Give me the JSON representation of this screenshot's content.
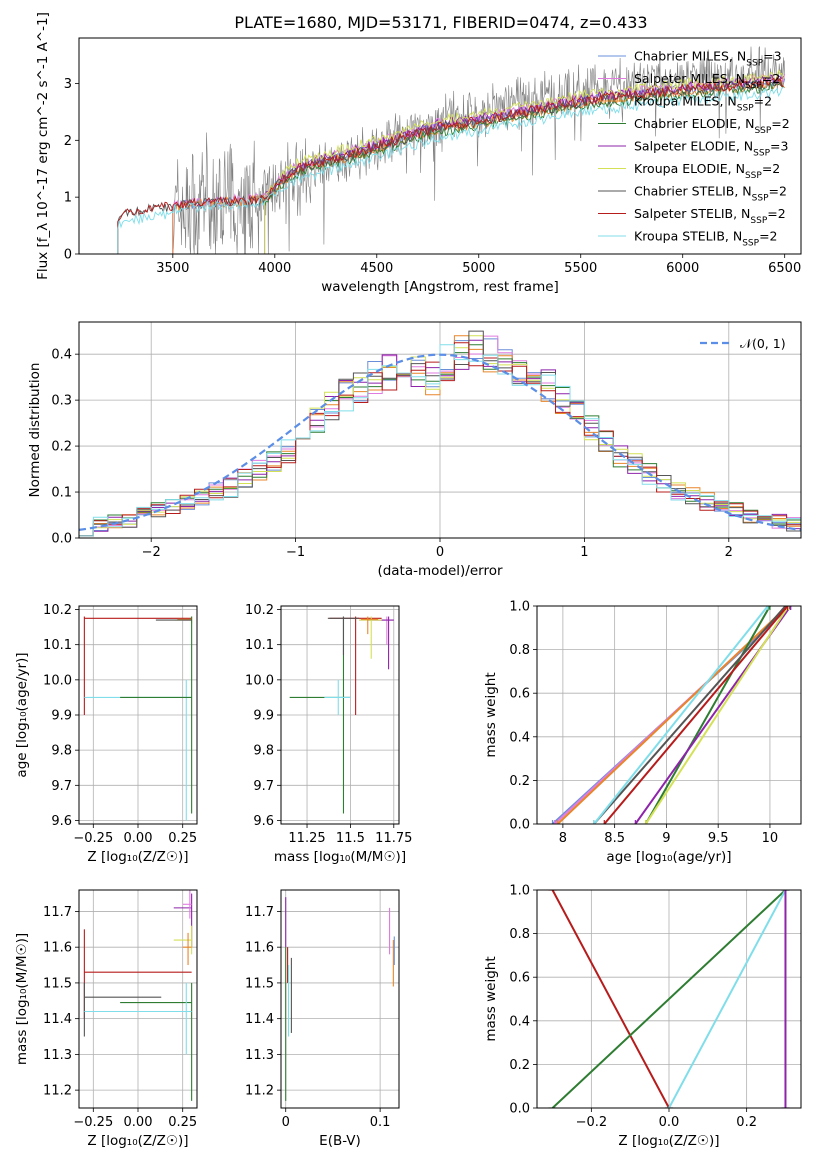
{
  "figure": {
    "title": "PLATE=1680, MJD=53171, FIBERID=0474, z=0.433"
  },
  "colors": {
    "Chabrier MILES": "#6a8fd8",
    "Salpeter MILES": "#e07be0",
    "Kroupa MILES": "#e8862a",
    "Chabrier ELODIE": "#2e7d32",
    "Salpeter ELODIE": "#8e24aa",
    "Kroupa ELODIE": "#d4e157",
    "Chabrier STELIB": "#555555",
    "Salpeter STELIB": "#b71c1c",
    "Kroupa STELIB": "#80deea",
    "data": "#808080",
    "normal": "#5b8ee6"
  },
  "chart_data": [
    {
      "id": "spectrum",
      "type": "line",
      "xlabel": "wavelength [Angstrom, rest frame]",
      "ylabel": "Flux [f_λ 10^-17 erg cm^-2 s^-1 A^-1]",
      "xlim": [
        3040,
        6580
      ],
      "ylim": [
        0,
        3.8
      ],
      "xticks": [
        3500,
        4000,
        4500,
        5000,
        5500,
        6000,
        6500
      ],
      "yticks": [
        0,
        1,
        2,
        3
      ],
      "grid": false,
      "legend_position": "upper right",
      "data_trend_knots": {
        "x": [
          3500,
          3700,
          3950,
          4100,
          4500,
          4800,
          5000,
          5500,
          6000,
          6500
        ],
        "y": [
          0.75,
          0.85,
          0.95,
          1.35,
          1.9,
          2.3,
          2.5,
          2.9,
          3.1,
          3.2
        ]
      },
      "model_trend_knots": {
        "x": [
          3230,
          3400,
          3700,
          3950,
          4000,
          4100,
          4500,
          4800,
          5000,
          5500,
          6000,
          6500
        ],
        "y": [
          0.65,
          0.8,
          0.9,
          0.95,
          1.15,
          1.45,
          1.85,
          2.2,
          2.3,
          2.65,
          2.85,
          3.0
        ]
      },
      "legend": [
        {
          "label": "Chabrier MILES, N",
          "nssp": "3"
        },
        {
          "label": "Salpeter MILES, N",
          "nssp": "2"
        },
        {
          "label": "Kroupa MILES, N",
          "nssp": "2"
        },
        {
          "label": "Chabrier ELODIE, N",
          "nssp": "2"
        },
        {
          "label": "Salpeter ELODIE, N",
          "nssp": "3"
        },
        {
          "label": "Kroupa ELODIE, N",
          "nssp": "2"
        },
        {
          "label": "Chabrier STELIB, N",
          "nssp": "2"
        },
        {
          "label": "Salpeter STELIB, N",
          "nssp": "2"
        },
        {
          "label": "Kroupa STELIB, N",
          "nssp": "2"
        }
      ],
      "nssp_subscript": "SSP"
    },
    {
      "id": "residuals",
      "type": "area",
      "xlabel": "(data-model)/error",
      "ylabel": "Normed distribution",
      "xlim": [
        -2.5,
        2.5
      ],
      "ylim": [
        0,
        0.47
      ],
      "xticks": [
        -2,
        -1,
        0,
        1,
        2
      ],
      "yticks": [
        0.0,
        0.1,
        0.2,
        0.3,
        0.4
      ],
      "grid": true,
      "legend_position": "upper right",
      "normal_label": "𝒩(0, 1)",
      "bin_width": 0.1,
      "hist_base": {
        "x": [
          -2.45,
          -2.35,
          -2.25,
          -2.15,
          -2.05,
          -1.95,
          -1.85,
          -1.75,
          -1.65,
          -1.55,
          -1.45,
          -1.35,
          -1.25,
          -1.15,
          -1.05,
          -0.95,
          -0.85,
          -0.75,
          -0.65,
          -0.55,
          -0.45,
          -0.35,
          -0.25,
          -0.15,
          -0.05,
          0.05,
          0.15,
          0.25,
          0.35,
          0.45,
          0.55,
          0.65,
          0.75,
          0.85,
          0.95,
          1.05,
          1.15,
          1.25,
          1.35,
          1.45,
          1.55,
          1.65,
          1.75,
          1.85,
          1.95,
          2.05,
          2.15,
          2.25,
          2.35,
          2.45
        ],
        "y": [
          0.02,
          0.03,
          0.035,
          0.04,
          0.05,
          0.06,
          0.07,
          0.08,
          0.09,
          0.1,
          0.11,
          0.13,
          0.15,
          0.17,
          0.19,
          0.22,
          0.26,
          0.29,
          0.31,
          0.33,
          0.35,
          0.36,
          0.37,
          0.36,
          0.35,
          0.38,
          0.4,
          0.41,
          0.4,
          0.39,
          0.37,
          0.35,
          0.33,
          0.3,
          0.27,
          0.24,
          0.21,
          0.18,
          0.16,
          0.14,
          0.12,
          0.1,
          0.09,
          0.08,
          0.07,
          0.06,
          0.05,
          0.04,
          0.035,
          0.03
        ]
      }
    },
    {
      "id": "age-vs-Z",
      "type": "scatter",
      "xlabel": "Z [log₁₀(Z/Z☉)]",
      "ylabel": "age  [log₁₀(age/yr)]",
      "xlim": [
        -0.33,
        0.33
      ],
      "ylim": [
        9.59,
        10.21
      ],
      "xticks": [
        -0.25,
        0.0,
        0.25
      ],
      "xtick_labels": [
        "−0.25",
        "0.00",
        "0.25"
      ],
      "yticks": [
        9.6,
        9.7,
        9.8,
        9.9,
        10.0,
        10.1,
        10.2
      ],
      "grid": true
    },
    {
      "id": "age-vs-mass",
      "type": "scatter",
      "xlabel": "mass [log₁₀(M/M☉)]",
      "ylabel": "",
      "xlim": [
        11.1,
        11.78
      ],
      "ylim": [
        9.59,
        10.21
      ],
      "xticks": [
        11.25,
        11.5,
        11.75
      ],
      "yticks": [
        9.6,
        9.7,
        9.8,
        9.9,
        10.0,
        10.1,
        10.2
      ],
      "grid": true
    },
    {
      "id": "cum-mass-vs-age",
      "type": "line",
      "xlabel": "age  [log₁₀(age/yr)]",
      "ylabel": "mass weight",
      "xlim": [
        7.75,
        10.3
      ],
      "ylim": [
        0,
        1
      ],
      "xticks": [
        8.0,
        8.5,
        9.0,
        9.5,
        10.0
      ],
      "yticks": [
        0.0,
        0.2,
        0.4,
        0.6,
        0.8,
        1.0
      ],
      "grid": true,
      "series": [
        {
          "name": "Chabrier MILES",
          "x": [
            7.9,
            10.2
          ],
          "y": [
            0,
            1
          ]
        },
        {
          "name": "Salpeter MILES",
          "x": [
            7.92,
            10.18
          ],
          "y": [
            0,
            1
          ]
        },
        {
          "name": "Kroupa MILES",
          "x": [
            7.95,
            10.17
          ],
          "y": [
            0,
            1
          ]
        },
        {
          "name": "Chabrier ELODIE",
          "x": [
            8.8,
            10.0
          ],
          "y": [
            0,
            1
          ]
        },
        {
          "name": "Salpeter ELODIE",
          "x": [
            8.7,
            10.2
          ],
          "y": [
            0,
            1
          ]
        },
        {
          "name": "Kroupa ELODIE",
          "x": [
            8.8,
            10.18
          ],
          "y": [
            0,
            1
          ]
        },
        {
          "name": "Chabrier STELIB",
          "x": [
            8.3,
            10.15
          ],
          "y": [
            0,
            1
          ]
        },
        {
          "name": "Salpeter STELIB",
          "x": [
            8.4,
            10.17
          ],
          "y": [
            0,
            1
          ]
        },
        {
          "name": "Kroupa STELIB",
          "x": [
            8.3,
            9.98
          ],
          "y": [
            0,
            1
          ]
        }
      ]
    },
    {
      "id": "mass-vs-Z",
      "type": "scatter",
      "xlabel": "Z [log₁₀(Z/Z☉)]",
      "ylabel": "mass [log₁₀(M/M☉)]",
      "xlim": [
        -0.33,
        0.33
      ],
      "ylim": [
        11.15,
        11.76
      ],
      "xticks": [
        -0.25,
        0.0,
        0.25
      ],
      "xtick_labels": [
        "−0.25",
        "0.00",
        "0.25"
      ],
      "yticks": [
        11.2,
        11.3,
        11.4,
        11.5,
        11.6,
        11.7
      ],
      "grid": true
    },
    {
      "id": "mass-vs-EBV",
      "type": "scatter",
      "xlabel": "E(B-V)",
      "ylabel": "",
      "xlim": [
        -0.005,
        0.12
      ],
      "ylim": [
        11.15,
        11.76
      ],
      "xticks": [
        0.0,
        0.1
      ],
      "yticks": [
        11.2,
        11.3,
        11.4,
        11.5,
        11.6,
        11.7
      ],
      "grid": true
    },
    {
      "id": "cum-mass-vs-Z",
      "type": "line",
      "xlabel": "Z [log₁₀(Z/Z☉)]",
      "ylabel": "mass weight",
      "xlim": [
        -0.34,
        0.34
      ],
      "ylim": [
        0,
        1
      ],
      "xticks": [
        -0.2,
        0.0,
        0.2
      ],
      "xtick_labels": [
        "−0.2",
        "0.0",
        "0.2"
      ],
      "yticks": [
        0.0,
        0.2,
        0.4,
        0.6,
        0.8,
        1.0
      ],
      "grid": true,
      "series": [
        {
          "name": "Salpeter STELIB",
          "x": [
            -0.3,
            0.0
          ],
          "y": [
            1,
            0
          ]
        },
        {
          "name": "Chabrier ELODIE",
          "x": [
            -0.3,
            0.3
          ],
          "y": [
            0,
            1
          ]
        },
        {
          "name": "Kroupa STELIB",
          "x": [
            0.0,
            0.3
          ],
          "y": [
            0,
            1
          ]
        },
        {
          "name": "Salpeter ELODIE",
          "x": [
            0.3,
            0.3
          ],
          "y": [
            0,
            1
          ]
        }
      ]
    }
  ]
}
